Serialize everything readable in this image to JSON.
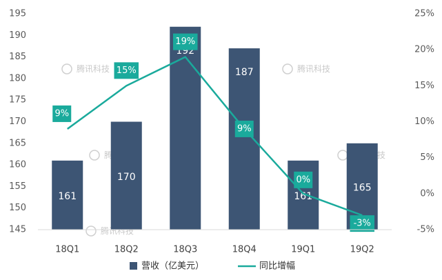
{
  "chart_data": {
    "type": "bar",
    "categories": [
      "18Q1",
      "18Q2",
      "18Q3",
      "18Q4",
      "19Q1",
      "19Q2"
    ],
    "series": [
      {
        "name": "营收（亿美元）",
        "type": "bar",
        "axis": "left",
        "values": [
          161,
          170,
          192,
          187,
          161,
          165
        ],
        "labels": [
          "161",
          "170",
          "192",
          "187",
          "161",
          "165"
        ],
        "color": "#3d5574"
      },
      {
        "name": "同比增幅",
        "type": "line",
        "axis": "right",
        "values": [
          9,
          15,
          19,
          9,
          0,
          -3
        ],
        "labels": [
          "9%",
          "15%",
          "19%",
          "9%",
          "0%",
          "-3%"
        ],
        "color": "#1aaa9c"
      }
    ],
    "left_axis": {
      "ylim": [
        145,
        195
      ],
      "ticks": [
        "145",
        "150",
        "155",
        "160",
        "165",
        "170",
        "175",
        "180",
        "185",
        "190",
        "195"
      ]
    },
    "right_axis": {
      "ylim": [
        -5,
        25
      ],
      "ticks": [
        "-5%",
        "0%",
        "5%",
        "10%",
        "15%",
        "20%",
        "25%"
      ]
    },
    "grid": false,
    "legend_position": "bottom",
    "watermark": "腾讯科技"
  }
}
